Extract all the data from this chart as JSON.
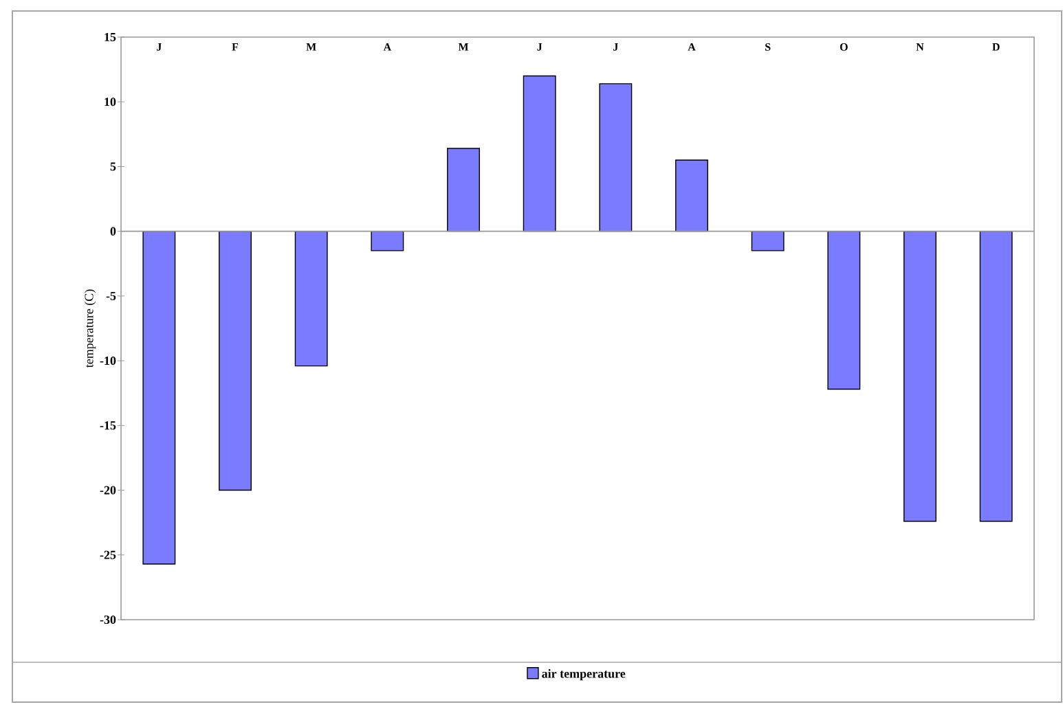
{
  "chart_data": {
    "type": "bar",
    "ylabel": "temperature (C)",
    "categories": [
      "J",
      "F",
      "M",
      "A",
      "M",
      "J",
      "J",
      "A",
      "S",
      "O",
      "N",
      "D"
    ],
    "series": [
      {
        "name": "air temperature",
        "color": "#7b7bff",
        "values": [
          -25.7,
          -20,
          -10.4,
          -1.5,
          6.4,
          12,
          11.4,
          5.5,
          -1.5,
          -12.2,
          -22.4,
          -22.4
        ]
      }
    ],
    "ylim": [
      -30,
      15
    ],
    "yticks": [
      -30,
      -25,
      -20,
      -15,
      -10,
      -5,
      0,
      5,
      10,
      15
    ],
    "legend": "bottom"
  }
}
